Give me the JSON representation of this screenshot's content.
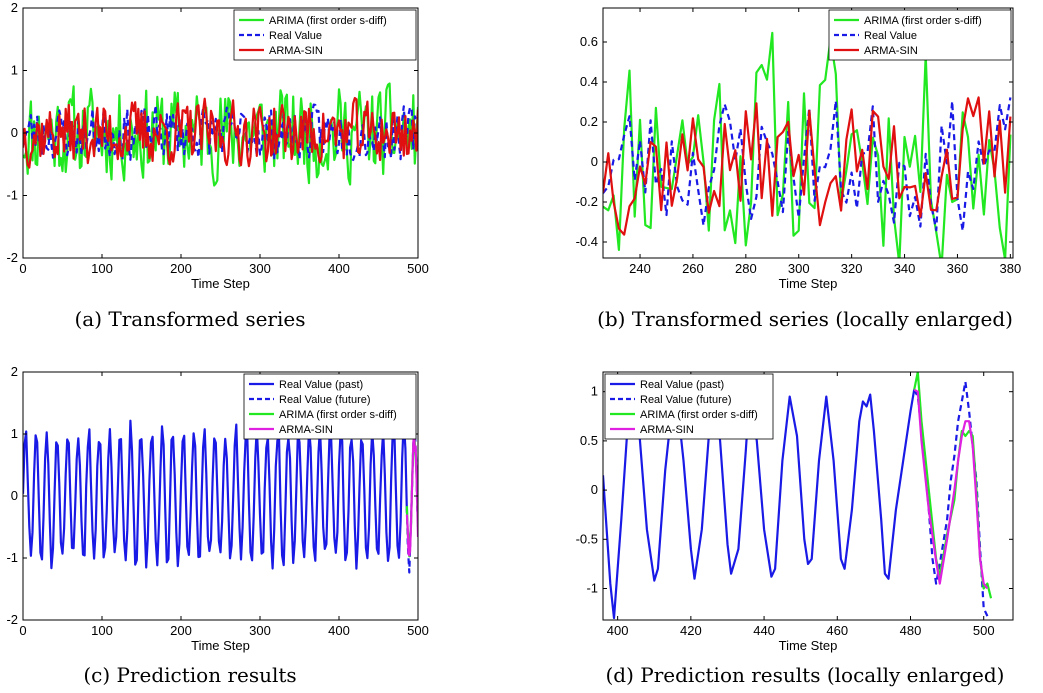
{
  "colors": {
    "green": "#22e822",
    "blue": "#1a1ae6",
    "red": "#e01010",
    "magenta": "#e020e0",
    "axis": "#000000",
    "plot_bg": "#ffffff"
  },
  "chart_data": [
    {
      "id": "a",
      "type": "line",
      "caption": "(a)  Transformed series",
      "xlabel": "Time Step",
      "ylabel": "",
      "xlim": [
        0,
        500
      ],
      "ylim": [
        -2,
        2
      ],
      "xticks": [
        0,
        100,
        200,
        300,
        400,
        500
      ],
      "yticks": [
        -2,
        -1,
        0,
        1,
        2
      ],
      "grid": false,
      "legend_position": "top-right",
      "legend": [
        "ARIMA (first order s-diff)",
        "Real Value",
        "ARMA-SIN"
      ],
      "series": [
        {
          "name": "ARIMA (first order s-diff)",
          "color": "green",
          "dash": "solid",
          "gen": {
            "kind": "noise",
            "from": 0,
            "to": 500,
            "step": 2,
            "amp": 0.8,
            "bias": 0.0,
            "seed": 11
          }
        },
        {
          "name": "Real Value",
          "color": "blue",
          "dash": "dashed",
          "gen": {
            "kind": "noise",
            "from": 0,
            "to": 500,
            "step": 2,
            "amp": 0.45,
            "bias": 0.0,
            "seed": 23
          }
        },
        {
          "name": "ARMA-SIN",
          "color": "red",
          "dash": "solid",
          "gen": {
            "kind": "noise",
            "from": 0,
            "to": 500,
            "step": 2,
            "amp": 0.55,
            "bias": 0.0,
            "seed": 37
          }
        }
      ]
    },
    {
      "id": "b",
      "type": "line",
      "caption": "(b)  Transformed series (locally enlarged)",
      "xlabel": "Time Step",
      "ylabel": "",
      "xlim": [
        226,
        381
      ],
      "ylim": [
        -0.48,
        0.77
      ],
      "xticks": [
        240,
        260,
        280,
        300,
        320,
        340,
        360,
        380
      ],
      "yticks": [
        -0.4,
        -0.2,
        0,
        0.2,
        0.4,
        0.6
      ],
      "ytick_labels": [
        "-0.4",
        "-0.2",
        "0",
        "0.2",
        "0.4",
        "0.6"
      ],
      "grid": false,
      "legend_position": "top-right",
      "legend": [
        "ARIMA (first order s-diff)",
        "Real Value",
        "ARMA-SIN"
      ],
      "series": [
        {
          "name": "ARIMA (first order s-diff)",
          "color": "green",
          "dash": "solid",
          "gen": {
            "kind": "noise",
            "from": 226,
            "to": 381,
            "step": 2,
            "amp": 0.62,
            "bias": 0.05,
            "seed": 11
          }
        },
        {
          "name": "Real Value",
          "color": "blue",
          "dash": "dashed",
          "gen": {
            "kind": "noise",
            "from": 226,
            "to": 381,
            "step": 2,
            "amp": 0.36,
            "bias": 0.0,
            "seed": 23
          }
        },
        {
          "name": "ARMA-SIN",
          "color": "red",
          "dash": "solid",
          "gen": {
            "kind": "noise",
            "from": 226,
            "to": 381,
            "step": 2,
            "amp": 0.36,
            "bias": 0.0,
            "seed": 37
          }
        }
      ]
    },
    {
      "id": "c",
      "type": "line",
      "caption": "(c)  Prediction results",
      "xlabel": "Time Step",
      "ylabel": "",
      "xlim": [
        0,
        500
      ],
      "ylim": [
        -2,
        2
      ],
      "xticks": [
        0,
        100,
        200,
        300,
        400,
        500
      ],
      "yticks": [
        -2,
        -1,
        0,
        1,
        2
      ],
      "grid": false,
      "legend_position": "top-right",
      "legend": [
        "Real Value (past)",
        "Real Value (future)",
        "ARIMA (first order s-diff)",
        "ARMA-SIN"
      ],
      "series": [
        {
          "name": "Real Value (past)",
          "color": "blue",
          "dash": "solid",
          "gen": {
            "kind": "wave",
            "from": 0,
            "to": 486,
            "step": 2,
            "period": 13.3,
            "amp": 1.05,
            "seed": 5
          }
        },
        {
          "name": "Real Value (future)",
          "color": "blue",
          "dash": "dashed",
          "gen": {
            "kind": "wave",
            "from": 486,
            "to": 500,
            "step": 1,
            "period": 13.3,
            "amp": 1.05,
            "seed": 6
          }
        },
        {
          "name": "ARIMA (first order s-diff)",
          "color": "green",
          "dash": "solid",
          "gen": {
            "kind": "wave",
            "from": 486,
            "to": 500,
            "step": 1,
            "period": 13.3,
            "amp": 0.95,
            "seed": 7
          }
        },
        {
          "name": "ARMA-SIN",
          "color": "magenta",
          "dash": "solid",
          "gen": {
            "kind": "wave",
            "from": 486,
            "to": 500,
            "step": 1,
            "period": 13.3,
            "amp": 0.95,
            "seed": 8
          }
        }
      ]
    },
    {
      "id": "d",
      "type": "line",
      "caption": "(d)  Prediction results (locally enlarged)",
      "xlabel": "Time Step",
      "ylabel": "",
      "xlim": [
        396,
        508
      ],
      "ylim": [
        -1.32,
        1.2
      ],
      "xticks": [
        400,
        420,
        440,
        460,
        480,
        500
      ],
      "yticks": [
        -1,
        -0.5,
        0,
        0.5,
        1
      ],
      "ytick_labels": [
        "-1",
        "-0.5",
        "0",
        "0.5",
        "1"
      ],
      "grid": false,
      "legend_position": "top-left",
      "legend": [
        "Real Value (past)",
        "Real Value (future)",
        "ARIMA (first order s-diff)",
        "ARMA-SIN"
      ],
      "series": [
        {
          "name": "Real Value (past)",
          "color": "blue",
          "dash": "solid",
          "points": [
            [
              396,
              0.15
            ],
            [
              398,
              -0.95
            ],
            [
              399,
              -1.3
            ],
            [
              401,
              -0.3
            ],
            [
              403,
              0.8
            ],
            [
              404,
              1.0
            ],
            [
              406,
              0.55
            ],
            [
              408,
              -0.4
            ],
            [
              410,
              -0.92
            ],
            [
              411,
              -0.8
            ],
            [
              413,
              0.2
            ],
            [
              415,
              0.9
            ],
            [
              416,
              1.0
            ],
            [
              418,
              0.3
            ],
            [
              420,
              -0.6
            ],
            [
              421,
              -0.9
            ],
            [
              423,
              -0.4
            ],
            [
              425,
              0.6
            ],
            [
              426,
              1.0
            ],
            [
              428,
              0.5
            ],
            [
              430,
              -0.55
            ],
            [
              431,
              -0.85
            ],
            [
              433,
              -0.6
            ],
            [
              435,
              0.4
            ],
            [
              436,
              0.95
            ],
            [
              438,
              0.5
            ],
            [
              440,
              -0.4
            ],
            [
              442,
              -0.88
            ],
            [
              443,
              -0.8
            ],
            [
              445,
              0.3
            ],
            [
              447,
              0.95
            ],
            [
              449,
              0.55
            ],
            [
              451,
              -0.5
            ],
            [
              452,
              -0.75
            ],
            [
              453,
              -0.7
            ],
            [
              455,
              0.3
            ],
            [
              457,
              0.95
            ],
            [
              459,
              0.3
            ],
            [
              461,
              -0.7
            ],
            [
              462,
              -0.8
            ],
            [
              464,
              -0.2
            ],
            [
              466,
              0.7
            ],
            [
              467,
              0.9
            ],
            [
              468,
              0.85
            ],
            [
              469,
              0.97
            ],
            [
              470,
              0.6
            ],
            [
              472,
              -0.3
            ],
            [
              473,
              -0.85
            ],
            [
              474,
              -0.9
            ],
            [
              476,
              -0.2
            ],
            [
              478,
              0.3
            ],
            [
              480,
              0.8
            ],
            [
              481,
              1.02
            ]
          ]
        },
        {
          "name": "Real Value (future)",
          "color": "blue",
          "dash": "dashed",
          "points": [
            [
              481,
              1.02
            ],
            [
              482,
              0.95
            ],
            [
              483,
              0.6
            ],
            [
              485,
              -0.2
            ],
            [
              486,
              -0.7
            ],
            [
              487,
              -0.95
            ],
            [
              488,
              -0.75
            ],
            [
              490,
              -0.3
            ],
            [
              491,
              0.1
            ],
            [
              492,
              0.35
            ],
            [
              493,
              0.7
            ],
            [
              494,
              0.9
            ],
            [
              495,
              1.1
            ],
            [
              496,
              0.8
            ],
            [
              498,
              0.1
            ],
            [
              499,
              -0.6
            ],
            [
              500,
              -1.2
            ],
            [
              501,
              -1.28
            ]
          ]
        },
        {
          "name": "ARIMA (first order s-diff)",
          "color": "green",
          "dash": "solid",
          "points": [
            [
              481,
              1.02
            ],
            [
              482,
              1.2
            ],
            [
              483,
              0.7
            ],
            [
              485,
              0.0
            ],
            [
              487,
              -0.7
            ],
            [
              488,
              -0.88
            ],
            [
              490,
              -0.45
            ],
            [
              492,
              -0.1
            ],
            [
              493,
              0.3
            ],
            [
              494,
              0.6
            ],
            [
              495,
              0.55
            ],
            [
              496,
              0.6
            ],
            [
              497,
              0.55
            ],
            [
              498,
              0.0
            ],
            [
              499,
              -0.7
            ],
            [
              500,
              -1.0
            ],
            [
              501,
              -0.95
            ],
            [
              502,
              -1.1
            ]
          ]
        },
        {
          "name": "ARMA-SIN",
          "color": "magenta",
          "dash": "solid",
          "points": [
            [
              481,
              1.02
            ],
            [
              482,
              1.0
            ],
            [
              483,
              0.5
            ],
            [
              485,
              -0.2
            ],
            [
              487,
              -0.72
            ],
            [
              488,
              -0.95
            ],
            [
              490,
              -0.5
            ],
            [
              492,
              0.0
            ],
            [
              493,
              0.3
            ],
            [
              494,
              0.55
            ],
            [
              495,
              0.7
            ],
            [
              496,
              0.7
            ],
            [
              497,
              0.45
            ],
            [
              498,
              -0.1
            ],
            [
              499,
              -0.7
            ],
            [
              500,
              -0.95
            ],
            [
              501,
              -1.0
            ]
          ]
        }
      ]
    }
  ]
}
